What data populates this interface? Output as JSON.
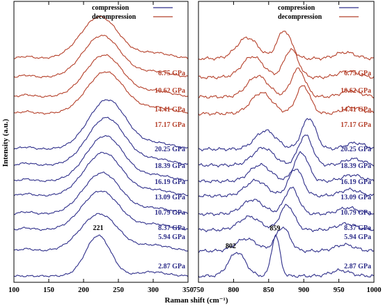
{
  "colors": {
    "compression": "#2e2e8a",
    "decompression": "#b5402a",
    "axis": "#000000"
  },
  "y_axis_label": "Intensity (a.u.)",
  "x_axis_label": "Raman shift (cm⁻¹)",
  "legend": {
    "compression": "compression",
    "decompression": "decompression"
  },
  "chart_data": [
    {
      "type": "line",
      "panel": "left",
      "xlim": [
        100,
        350
      ],
      "x_ticks": [
        100,
        150,
        200,
        250,
        300,
        350
      ],
      "legend_placement": "top-right",
      "series": [
        {
          "name": "compression",
          "pressure": "2.87 GPa",
          "pressure_value": 2.87
        },
        {
          "name": "compression",
          "pressure": "5.94 GPa",
          "pressure_value": 5.94
        },
        {
          "name": "compression",
          "pressure": "8.37 GPa",
          "pressure_value": 8.37
        },
        {
          "name": "compression",
          "pressure": "10.79 GPa",
          "pressure_value": 10.79
        },
        {
          "name": "compression",
          "pressure": "13.09 GPa",
          "pressure_value": 13.09
        },
        {
          "name": "compression",
          "pressure": "16.19 GPa",
          "pressure_value": 16.19
        },
        {
          "name": "compression",
          "pressure": "18.39 GPa",
          "pressure_value": 18.39
        },
        {
          "name": "compression",
          "pressure": "20.25 GPa",
          "pressure_value": 20.25
        },
        {
          "name": "decompression",
          "pressure": "17.17 GPa",
          "pressure_value": 17.17
        },
        {
          "name": "decompression",
          "pressure": "14.41 GPa",
          "pressure_value": 14.41
        },
        {
          "name": "decompression",
          "pressure": "10.62 GPa",
          "pressure_value": 10.62
        },
        {
          "name": "decompression",
          "pressure": "6.75 GPa",
          "pressure_value": 6.75
        }
      ],
      "annotations": [
        {
          "text": "221",
          "x": 221
        }
      ]
    },
    {
      "type": "line",
      "panel": "right",
      "xlim": [
        750,
        1000
      ],
      "x_ticks": [
        750,
        800,
        850,
        900,
        950,
        1000
      ],
      "legend_placement": "top-right",
      "series": [
        {
          "name": "compression",
          "pressure": "2.87 GPa",
          "pressure_value": 2.87
        },
        {
          "name": "compression",
          "pressure": "5.94 GPa",
          "pressure_value": 5.94
        },
        {
          "name": "compression",
          "pressure": "8.37 GPa",
          "pressure_value": 8.37
        },
        {
          "name": "compression",
          "pressure": "10.79 GPa",
          "pressure_value": 10.79
        },
        {
          "name": "compression",
          "pressure": "13.09 GPa",
          "pressure_value": 13.09
        },
        {
          "name": "compression",
          "pressure": "16.19 GPa",
          "pressure_value": 16.19
        },
        {
          "name": "compression",
          "pressure": "18.39 GPa",
          "pressure_value": 18.39
        },
        {
          "name": "compression",
          "pressure": "20.25 GPa",
          "pressure_value": 20.25
        },
        {
          "name": "decompression",
          "pressure": "17.17 GPa",
          "pressure_value": 17.17
        },
        {
          "name": "decompression",
          "pressure": "14.41 GPa",
          "pressure_value": 14.41
        },
        {
          "name": "decompression",
          "pressure": "10.62 GPa",
          "pressure_value": 10.62
        },
        {
          "name": "decompression",
          "pressure": "6.75 GPa",
          "pressure_value": 6.75
        }
      ],
      "annotations": [
        {
          "text": "802",
          "x": 802
        },
        {
          "text": "859",
          "x": 859
        }
      ]
    }
  ]
}
